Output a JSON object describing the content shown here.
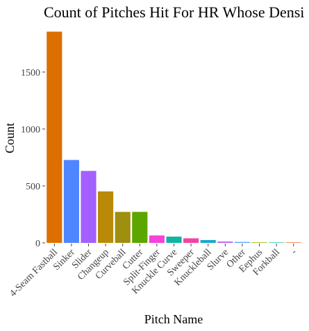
{
  "chart_data": {
    "type": "bar",
    "title": "Count of Pitches Hit For HR Whose Densi",
    "xlabel": "Pitch Name",
    "ylabel": "Count",
    "ylim": [
      0,
      1950
    ],
    "yticks": [
      0,
      500,
      1000,
      1500
    ],
    "ytick_labels": [
      "0",
      "500",
      "1000",
      "1500"
    ],
    "grid": false,
    "legend": "none",
    "categories": [
      "4-Seam Fastball",
      "Sinker",
      "Slider",
      "Changeup",
      "Curveball",
      "Cutter",
      "Split-Finger",
      "Knuckle Curve",
      "Sweeper",
      "Knuckleball",
      "Slurve",
      "Other",
      "Eephus",
      "Forkball",
      "-"
    ],
    "values": [
      1855,
      728,
      632,
      452,
      272,
      272,
      65,
      55,
      40,
      25,
      12,
      8,
      5,
      4,
      6
    ],
    "colors": [
      "#DD6F00",
      "#4E86FF",
      "#A35FFF",
      "#B88A05",
      "#9E8F0E",
      "#5DA500",
      "#F542D9",
      "#11B5A0",
      "#F442A3",
      "#17A8C9",
      "#C864F5",
      "#54A3FF",
      "#9DB700",
      "#00BFA0",
      "#F08C60"
    ]
  }
}
